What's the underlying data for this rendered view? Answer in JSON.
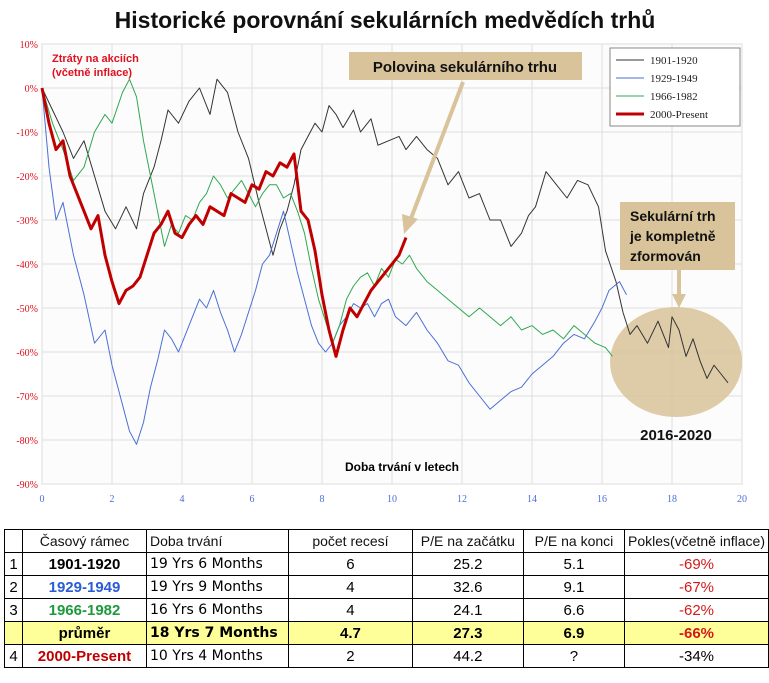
{
  "title": "Historické porovnání  sekulárních medvědích trhů",
  "y_axis_caption_line1": "Ztráty na akciích",
  "y_axis_caption_line2": "(včetně inflace)",
  "x_axis_caption": "Doba trvání v letech",
  "annotation_mid": "Polovina sekulárního trhu",
  "annotation_complete_lines": [
    "Sekulární trh",
    "je kompletně",
    "zformován"
  ],
  "annotation_period": "2016-2020",
  "colors": {
    "s1901": "#333333",
    "s1929": "#4a6fd6",
    "s1966": "#2fa84f",
    "s2000": "#c00000",
    "highlight": "#d8c39a",
    "avg_row": "#ffff99",
    "negative": "#d21a1a"
  },
  "chart_data": {
    "type": "line",
    "xlabel": "Doba trvání v letech",
    "ylabel": "Ztráty na akciích (včetně inflace)",
    "xlim": [
      0,
      20
    ],
    "ylim": [
      -90,
      10
    ],
    "x_ticks": [
      "0",
      "2",
      "4",
      "6",
      "8",
      "10",
      "12",
      "14",
      "16",
      "18",
      "20"
    ],
    "y_ticks": [
      "10%",
      "0%",
      "-10%",
      "-20%",
      "-30%",
      "-40%",
      "-50%",
      "-60%",
      "-70%",
      "-80%",
      "-90%"
    ],
    "grid": true,
    "legend_position": "top-right",
    "series": [
      {
        "name": "1901-1920",
        "color": "#333333",
        "width": 1,
        "points": [
          [
            0,
            0
          ],
          [
            0.3,
            -5
          ],
          [
            0.6,
            -10
          ],
          [
            0.9,
            -16
          ],
          [
            1.2,
            -12
          ],
          [
            1.5,
            -20
          ],
          [
            1.8,
            -28
          ],
          [
            2.1,
            -32
          ],
          [
            2.4,
            -27
          ],
          [
            2.7,
            -32
          ],
          [
            2.9,
            -24
          ],
          [
            3.2,
            -18
          ],
          [
            3.4,
            -12
          ],
          [
            3.6,
            -5
          ],
          [
            3.9,
            -8
          ],
          [
            4.2,
            -3
          ],
          [
            4.5,
            0
          ],
          [
            4.8,
            -6
          ],
          [
            5.0,
            2
          ],
          [
            5.3,
            -1
          ],
          [
            5.6,
            -10
          ],
          [
            5.9,
            -16
          ],
          [
            6.2,
            -26
          ],
          [
            6.4,
            -32
          ],
          [
            6.6,
            -38
          ],
          [
            6.8,
            -32
          ],
          [
            7.0,
            -28
          ],
          [
            7.2,
            -22
          ],
          [
            7.4,
            -14
          ],
          [
            7.6,
            -11
          ],
          [
            7.8,
            -8
          ],
          [
            8.0,
            -10
          ],
          [
            8.2,
            -4
          ],
          [
            8.4,
            -6
          ],
          [
            8.6,
            -9
          ],
          [
            8.9,
            -5
          ],
          [
            9.1,
            -10
          ],
          [
            9.4,
            -7
          ],
          [
            9.6,
            -13
          ],
          [
            9.9,
            -12
          ],
          [
            10.2,
            -11
          ],
          [
            10.4,
            -14
          ],
          [
            10.7,
            -11
          ],
          [
            11.0,
            -14
          ],
          [
            11.3,
            -16
          ],
          [
            11.6,
            -22
          ],
          [
            11.9,
            -19
          ],
          [
            12.2,
            -25
          ],
          [
            12.5,
            -24
          ],
          [
            12.8,
            -30
          ],
          [
            13.1,
            -30
          ],
          [
            13.4,
            -36
          ],
          [
            13.7,
            -33
          ],
          [
            13.9,
            -29
          ],
          [
            14.1,
            -27
          ],
          [
            14.4,
            -19
          ],
          [
            14.7,
            -22
          ],
          [
            15.0,
            -25
          ],
          [
            15.3,
            -21
          ],
          [
            15.6,
            -22
          ],
          [
            15.9,
            -27
          ],
          [
            16.1,
            -37
          ],
          [
            16.4,
            -44
          ],
          [
            16.6,
            -51
          ],
          [
            16.8,
            -56
          ],
          [
            17.0,
            -54
          ],
          [
            17.3,
            -58
          ],
          [
            17.6,
            -53
          ],
          [
            17.9,
            -59
          ],
          [
            18.0,
            -52
          ],
          [
            18.2,
            -55
          ],
          [
            18.4,
            -61
          ],
          [
            18.6,
            -57
          ],
          [
            18.8,
            -62
          ],
          [
            19.0,
            -66
          ],
          [
            19.2,
            -63
          ],
          [
            19.4,
            -65
          ],
          [
            19.6,
            -67
          ]
        ]
      },
      {
        "name": "1929-1949",
        "color": "#4a6fd6",
        "width": 1,
        "points": [
          [
            0,
            0
          ],
          [
            0.2,
            -18
          ],
          [
            0.4,
            -30
          ],
          [
            0.6,
            -26
          ],
          [
            0.9,
            -38
          ],
          [
            1.2,
            -47
          ],
          [
            1.5,
            -58
          ],
          [
            1.8,
            -55
          ],
          [
            2.0,
            -63
          ],
          [
            2.3,
            -72
          ],
          [
            2.5,
            -78
          ],
          [
            2.7,
            -81
          ],
          [
            2.9,
            -76
          ],
          [
            3.1,
            -68
          ],
          [
            3.3,
            -62
          ],
          [
            3.5,
            -55
          ],
          [
            3.7,
            -57
          ],
          [
            3.9,
            -60
          ],
          [
            4.1,
            -56
          ],
          [
            4.3,
            -52
          ],
          [
            4.5,
            -48
          ],
          [
            4.7,
            -50
          ],
          [
            4.9,
            -46
          ],
          [
            5.1,
            -51
          ],
          [
            5.3,
            -55
          ],
          [
            5.5,
            -60
          ],
          [
            5.7,
            -56
          ],
          [
            5.9,
            -51
          ],
          [
            6.1,
            -46
          ],
          [
            6.3,
            -40
          ],
          [
            6.5,
            -38
          ],
          [
            6.7,
            -33
          ],
          [
            6.9,
            -28
          ],
          [
            7.1,
            -35
          ],
          [
            7.3,
            -42
          ],
          [
            7.5,
            -48
          ],
          [
            7.7,
            -54
          ],
          [
            7.9,
            -58
          ],
          [
            8.1,
            -60
          ],
          [
            8.3,
            -58
          ],
          [
            8.5,
            -54
          ],
          [
            8.7,
            -52
          ],
          [
            8.9,
            -49
          ],
          [
            9.1,
            -50
          ],
          [
            9.3,
            -49
          ],
          [
            9.5,
            -52
          ],
          [
            9.7,
            -49
          ],
          [
            9.9,
            -48
          ],
          [
            10.1,
            -52
          ],
          [
            10.4,
            -54
          ],
          [
            10.7,
            -51
          ],
          [
            11.0,
            -55
          ],
          [
            11.3,
            -58
          ],
          [
            11.6,
            -62
          ],
          [
            11.9,
            -63
          ],
          [
            12.2,
            -67
          ],
          [
            12.5,
            -70
          ],
          [
            12.8,
            -73
          ],
          [
            13.1,
            -71
          ],
          [
            13.4,
            -69
          ],
          [
            13.7,
            -68
          ],
          [
            14.0,
            -65
          ],
          [
            14.3,
            -63
          ],
          [
            14.6,
            -61
          ],
          [
            14.9,
            -58
          ],
          [
            15.2,
            -56
          ],
          [
            15.5,
            -57
          ],
          [
            15.8,
            -53
          ],
          [
            16.0,
            -50
          ],
          [
            16.2,
            -46
          ],
          [
            16.5,
            -44
          ],
          [
            16.7,
            -47
          ]
        ]
      },
      {
        "name": "1966-1982",
        "color": "#2fa84f",
        "width": 1,
        "points": [
          [
            0,
            0
          ],
          [
            0.3,
            -8
          ],
          [
            0.6,
            -14
          ],
          [
            0.9,
            -21
          ],
          [
            1.2,
            -18
          ],
          [
            1.5,
            -10
          ],
          [
            1.8,
            -6
          ],
          [
            2.0,
            -8
          ],
          [
            2.3,
            -1
          ],
          [
            2.5,
            2
          ],
          [
            2.7,
            -2
          ],
          [
            2.9,
            -12
          ],
          [
            3.1,
            -20
          ],
          [
            3.3,
            -28
          ],
          [
            3.5,
            -36
          ],
          [
            3.7,
            -31
          ],
          [
            3.9,
            -33
          ],
          [
            4.1,
            -29
          ],
          [
            4.3,
            -30
          ],
          [
            4.5,
            -26
          ],
          [
            4.7,
            -24
          ],
          [
            4.9,
            -20
          ],
          [
            5.1,
            -22
          ],
          [
            5.3,
            -25
          ],
          [
            5.5,
            -23
          ],
          [
            5.7,
            -21
          ],
          [
            5.9,
            -24
          ],
          [
            6.1,
            -27
          ],
          [
            6.3,
            -24
          ],
          [
            6.5,
            -22
          ],
          [
            6.7,
            -22
          ],
          [
            6.9,
            -25
          ],
          [
            7.1,
            -24
          ],
          [
            7.3,
            -28
          ],
          [
            7.5,
            -33
          ],
          [
            7.7,
            -41
          ],
          [
            7.9,
            -48
          ],
          [
            8.1,
            -53
          ],
          [
            8.3,
            -58
          ],
          [
            8.5,
            -54
          ],
          [
            8.7,
            -48
          ],
          [
            8.9,
            -45
          ],
          [
            9.1,
            -43
          ],
          [
            9.3,
            -42
          ],
          [
            9.5,
            -45
          ],
          [
            9.7,
            -41
          ],
          [
            9.9,
            -43
          ],
          [
            10.1,
            -39
          ],
          [
            10.3,
            -40
          ],
          [
            10.5,
            -38
          ],
          [
            10.7,
            -41
          ],
          [
            11.0,
            -44
          ],
          [
            11.3,
            -46
          ],
          [
            11.6,
            -48
          ],
          [
            11.9,
            -50
          ],
          [
            12.2,
            -52
          ],
          [
            12.5,
            -50
          ],
          [
            12.8,
            -52
          ],
          [
            13.1,
            -54
          ],
          [
            13.4,
            -52
          ],
          [
            13.7,
            -55
          ],
          [
            14.0,
            -54
          ],
          [
            14.3,
            -56
          ],
          [
            14.6,
            -55
          ],
          [
            14.9,
            -57
          ],
          [
            15.2,
            -54
          ],
          [
            15.5,
            -56
          ],
          [
            15.8,
            -58
          ],
          [
            16.1,
            -59
          ],
          [
            16.3,
            -61
          ]
        ]
      },
      {
        "name": "2000-Present",
        "color": "#c00000",
        "width": 3,
        "points": [
          [
            0,
            0
          ],
          [
            0.2,
            -8
          ],
          [
            0.4,
            -14
          ],
          [
            0.6,
            -12
          ],
          [
            0.8,
            -20
          ],
          [
            1.0,
            -24
          ],
          [
            1.2,
            -28
          ],
          [
            1.4,
            -32
          ],
          [
            1.6,
            -29
          ],
          [
            1.8,
            -38
          ],
          [
            2.0,
            -44
          ],
          [
            2.2,
            -49
          ],
          [
            2.4,
            -46
          ],
          [
            2.6,
            -45
          ],
          [
            2.8,
            -43
          ],
          [
            3.0,
            -38
          ],
          [
            3.2,
            -33
          ],
          [
            3.4,
            -31
          ],
          [
            3.6,
            -28
          ],
          [
            3.8,
            -33
          ],
          [
            4.0,
            -34
          ],
          [
            4.2,
            -31
          ],
          [
            4.4,
            -29
          ],
          [
            4.6,
            -31
          ],
          [
            4.8,
            -27
          ],
          [
            5.0,
            -28
          ],
          [
            5.2,
            -29
          ],
          [
            5.4,
            -24
          ],
          [
            5.6,
            -25
          ],
          [
            5.8,
            -26
          ],
          [
            6.0,
            -22
          ],
          [
            6.2,
            -23
          ],
          [
            6.4,
            -19
          ],
          [
            6.6,
            -20
          ],
          [
            6.8,
            -17
          ],
          [
            7.0,
            -18
          ],
          [
            7.2,
            -15
          ],
          [
            7.4,
            -28
          ],
          [
            7.6,
            -30
          ],
          [
            7.8,
            -37
          ],
          [
            8.0,
            -47
          ],
          [
            8.2,
            -55
          ],
          [
            8.4,
            -61
          ],
          [
            8.6,
            -55
          ],
          [
            8.8,
            -50
          ],
          [
            9.0,
            -52
          ],
          [
            9.2,
            -49
          ],
          [
            9.4,
            -46
          ],
          [
            9.6,
            -44
          ],
          [
            9.8,
            -42
          ],
          [
            10.0,
            -40
          ],
          [
            10.2,
            -38
          ],
          [
            10.4,
            -34
          ]
        ]
      }
    ]
  },
  "table": {
    "headers": [
      "Časový rámec",
      "Doba trvání",
      "počet recesí",
      "P/E na začátku",
      "P/E na konci",
      "Pokles(včetně inflace)"
    ],
    "rows": [
      {
        "num": "1",
        "period": "1901-1920",
        "period_color": "#000000",
        "duration": "19 Yrs 6 Months",
        "recessions": "6",
        "pe_start": "25.2",
        "pe_end": "5.1",
        "decline": "-69%",
        "decline_red": true
      },
      {
        "num": "2",
        "period": "1929-1949",
        "period_color": "#2a5bd6",
        "duration": "19 Yrs 9 Months",
        "recessions": "4",
        "pe_start": "32.6",
        "pe_end": "9.1",
        "decline": "-67%",
        "decline_red": true
      },
      {
        "num": "3",
        "period": "1966-1982",
        "period_color": "#1e9a3c",
        "duration": "16 Yrs 6 Months",
        "recessions": "4",
        "pe_start": "24.1",
        "pe_end": "6.6",
        "decline": "-62%",
        "decline_red": true
      }
    ],
    "average": {
      "num": "",
      "label": "průměr",
      "duration": "18 Yrs 7 Months",
      "recessions": "4.7",
      "pe_start": "27.3",
      "pe_end": "6.9",
      "decline": "-66%"
    },
    "last": {
      "num": "4",
      "period": "2000-Present",
      "period_color": "#c00000",
      "duration": "10 Yrs 4 Months",
      "recessions": "2",
      "pe_start": "44.2",
      "pe_end": "?",
      "decline": "-34%"
    }
  }
}
